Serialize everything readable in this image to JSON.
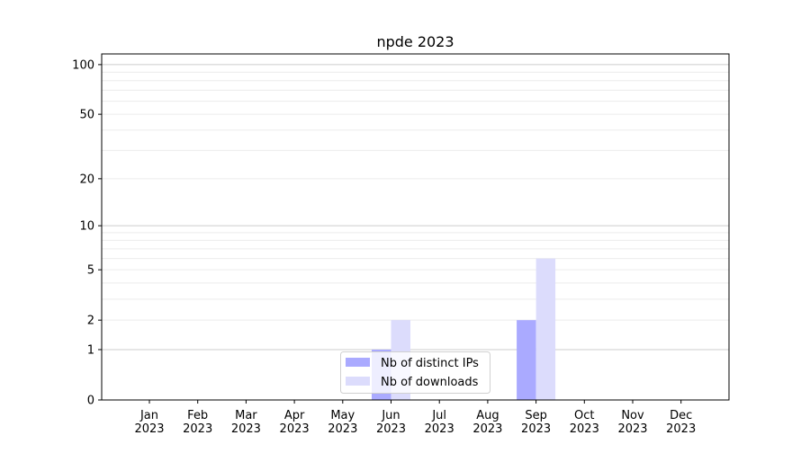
{
  "chart_data": {
    "type": "bar",
    "title": "npde 2023",
    "xlabel": "",
    "ylabel": "",
    "yscale": "symlog (log10(1+y))",
    "ylim": [
      0,
      116
    ],
    "yticks": [
      0,
      1,
      2,
      5,
      10,
      20,
      50,
      100
    ],
    "grid": true,
    "legend_position": "bottom-center",
    "categories": [
      "Jan\n2023",
      "Feb\n2023",
      "Mar\n2023",
      "Apr\n2023",
      "May\n2023",
      "Jun\n2023",
      "Jul\n2023",
      "Aug\n2023",
      "Sep\n2023",
      "Oct\n2023",
      "Nov\n2023",
      "Dec\n2023"
    ],
    "series": [
      {
        "name": "Nb of distinct IPs",
        "color": "#aaaaff",
        "values": [
          0,
          0,
          0,
          0,
          0,
          1,
          0,
          0,
          2,
          0,
          0,
          0
        ]
      },
      {
        "name": "Nb of downloads",
        "color": "#dcdcfc",
        "values": [
          0,
          0,
          0,
          0,
          0,
          2,
          0,
          0,
          6,
          0,
          0,
          0
        ]
      }
    ]
  }
}
